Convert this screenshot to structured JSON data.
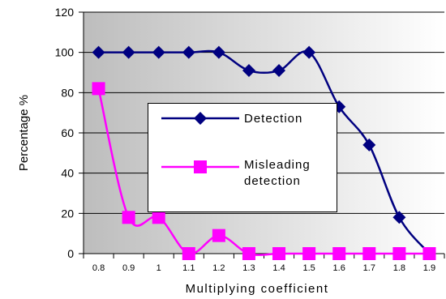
{
  "chart_data": {
    "type": "line",
    "title": "",
    "xlabel": "Multiplying coefficient",
    "ylabel": "Percentage %",
    "categories": [
      "0.8",
      "0.9",
      "1",
      "1.1",
      "1.2",
      "1.3",
      "1.4",
      "1.5",
      "1.6",
      "1.7",
      "1.8",
      "1.9"
    ],
    "ylim": [
      0,
      120
    ],
    "yticks": [
      "0",
      "20",
      "40",
      "60",
      "80",
      "100",
      "120"
    ],
    "grid": true,
    "legend_position": "center",
    "series": [
      {
        "name": "Detection",
        "marker": "diamond",
        "color": "#000080",
        "values": [
          100,
          100,
          100,
          100,
          100,
          91,
          91,
          100,
          73,
          54,
          18,
          0
        ]
      },
      {
        "name": "Misleading detection",
        "name_lines": [
          "Misleading",
          "detection"
        ],
        "marker": "square",
        "color": "#ff00ff",
        "values": [
          82,
          18,
          18,
          0,
          9,
          0,
          0,
          0,
          0,
          0,
          0,
          0
        ]
      }
    ],
    "plot_background": "#c0c0c0",
    "grid_color": "#000000"
  }
}
